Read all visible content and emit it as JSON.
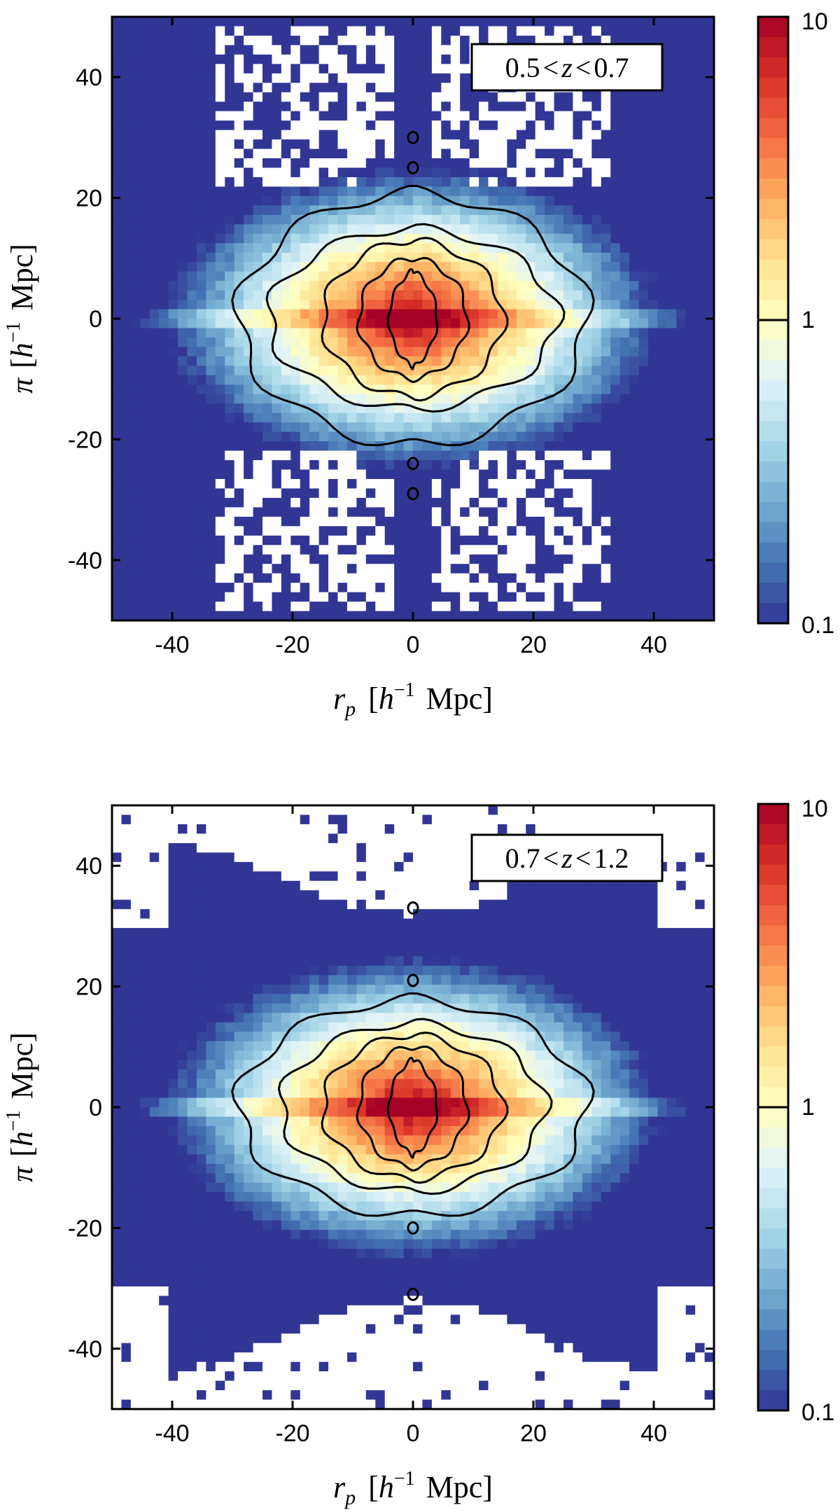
{
  "chart_data": [
    {
      "type": "heatmap",
      "panel": "top",
      "annotation": "0.5 < z < 0.7",
      "annotation_parts": {
        "low": "0.5",
        "lt1": "<",
        "var": "z",
        "lt2": "<",
        "high": "0.7"
      },
      "xlabel_parts": {
        "sym": "r",
        "sub": "p",
        "open": "[",
        "h": "h",
        "sup": "−1",
        "unit": "Mpc",
        "close": "]"
      },
      "ylabel_parts": {
        "sym": "π",
        "open": "[",
        "h": "h",
        "sup": "−1",
        "unit": "Mpc",
        "close": "]"
      },
      "xlim": [
        -50,
        50
      ],
      "ylim": [
        -50,
        50
      ],
      "x_ticks": [
        "-40",
        "-20",
        "0",
        "20",
        "40"
      ],
      "y_ticks": [
        "40",
        "20",
        "0",
        "-20",
        "-40"
      ],
      "colorbar": {
        "scale": "log",
        "range": [
          0.1,
          10
        ],
        "tick_labels": [
          "10",
          "1",
          "0.1"
        ]
      },
      "contours": [
        {
          "level": "outer",
          "rp_extent": 29,
          "pi_extent": 21
        },
        {
          "level": "2",
          "rp_extent": 24,
          "pi_extent": 15
        },
        {
          "level": "3",
          "rp_extent": 15,
          "pi_extent": 13
        },
        {
          "level": "4",
          "rp_extent": 9,
          "pi_extent": 10
        },
        {
          "level": "inner",
          "rp_extent": 4,
          "pi_extent": 8
        }
      ],
      "small_contours_pi": [
        30,
        25,
        -24,
        -29
      ]
    },
    {
      "type": "heatmap",
      "panel": "bottom",
      "annotation": "0.7 < z < 1.2",
      "annotation_parts": {
        "low": "0.7",
        "lt1": "<",
        "var": "z",
        "lt2": "<",
        "high": "1.2"
      },
      "xlabel_parts": {
        "sym": "r",
        "sub": "p",
        "open": "[",
        "h": "h",
        "sup": "−1",
        "unit": "Mpc",
        "close": "]"
      },
      "ylabel_parts": {
        "sym": "π",
        "open": "[",
        "h": "h",
        "sup": "−1",
        "unit": "Mpc",
        "close": "]"
      },
      "xlim": [
        -50,
        50
      ],
      "ylim": [
        -50,
        50
      ],
      "x_ticks": [
        "-40",
        "-20",
        "0",
        "20",
        "40"
      ],
      "y_ticks": [
        "40",
        "20",
        "0",
        "-20",
        "-40"
      ],
      "colorbar": {
        "scale": "log",
        "range": [
          0.1,
          10
        ],
        "tick_labels": [
          "10",
          "1",
          "0.1"
        ]
      },
      "contours": [
        {
          "level": "outer",
          "rp_extent": 29,
          "pi_extent": 18
        },
        {
          "level": "2",
          "rp_extent": 22,
          "pi_extent": 14
        },
        {
          "level": "3",
          "rp_extent": 15,
          "pi_extent": 12
        },
        {
          "level": "4",
          "rp_extent": 9,
          "pi_extent": 10
        },
        {
          "level": "inner",
          "rp_extent": 4,
          "pi_extent": 8
        }
      ],
      "small_contours_pi": [
        33,
        21,
        -20,
        -31
      ]
    }
  ],
  "colors": {
    "colormap": [
      "#313695",
      "#4575b4",
      "#74add1",
      "#abd9e9",
      "#e0f3f8",
      "#ffffbf",
      "#fee090",
      "#fdae61",
      "#f46d43",
      "#d73027",
      "#a50026"
    ],
    "background_low": "#3b4a9e",
    "masked": "#ffffff"
  }
}
